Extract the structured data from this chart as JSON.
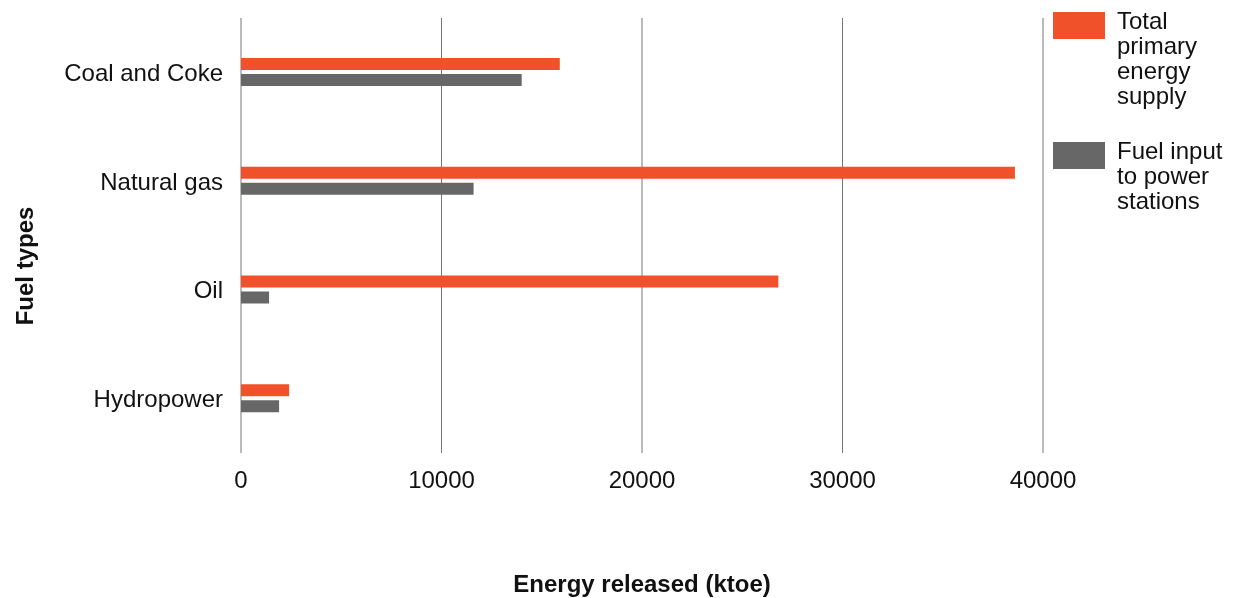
{
  "chart_data": {
    "type": "bar",
    "orientation": "horizontal",
    "xlabel": "Energy released (ktoe)",
    "ylabel": "Fuel types",
    "categories": [
      "Coal and Coke",
      "Natural gas",
      "Oil",
      "Hydropower"
    ],
    "series": [
      {
        "name": "Total primary energy supply",
        "color": "#f0512a",
        "values": [
          15900,
          38600,
          26800,
          2400
        ]
      },
      {
        "name": "Fuel input to power stations",
        "color": "#676767",
        "values": [
          14000,
          11600,
          1400,
          1900
        ]
      }
    ],
    "xlim": [
      0,
      40000
    ],
    "xticks": [
      0,
      10000,
      20000,
      30000,
      40000
    ],
    "grid": "x",
    "legend": "top right"
  }
}
